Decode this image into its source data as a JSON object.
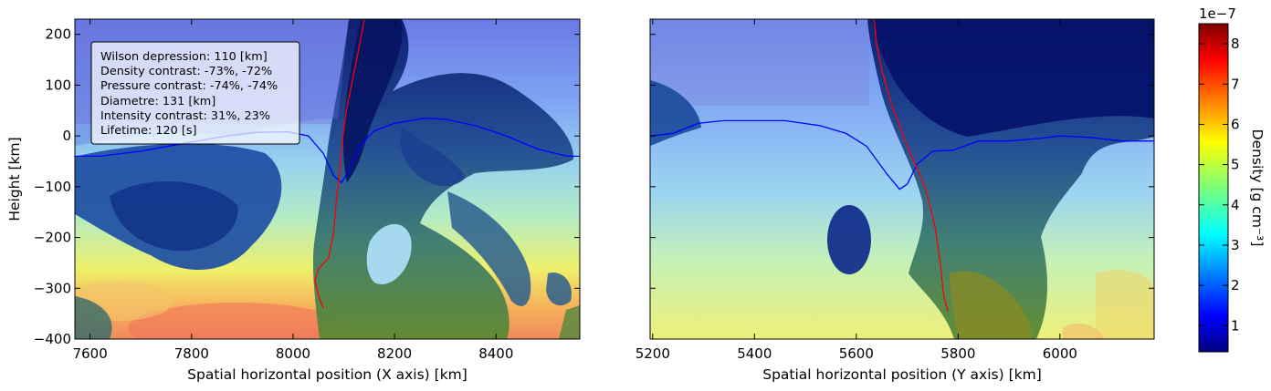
{
  "chart_data": [
    {
      "type": "heatmap",
      "panel": "left",
      "xlabel": "Spatial horizontal position (X axis) [km]",
      "ylabel": "Height [km]",
      "xlim": [
        7570,
        8565
      ],
      "ylim": [
        -400,
        230
      ],
      "xticks": [
        7600,
        7800,
        8000,
        8200,
        8400
      ],
      "yticks": [
        200,
        100,
        0,
        -100,
        -200,
        -300,
        -400
      ],
      "info_box": [
        "Wilson depression: 110 [km]",
        "Density contrast: -73%, -72%",
        "Pressure contrast: -74%, -74%",
        "Diametre: 131 [km]",
        "Intensity contrast: 31%, 23%",
        "Lifetime: 120 [s]"
      ],
      "series": [
        {
          "color": "#0000ff",
          "x": [
            7570,
            7620,
            7700,
            7800,
            7870,
            7930,
            7990,
            8030,
            8060,
            8080,
            8095,
            8110,
            8130,
            8160,
            8200,
            8260,
            8300,
            8360,
            8420,
            8480,
            8540,
            8565
          ],
          "y": [
            -40,
            -40,
            -30,
            -12,
            0,
            7,
            8,
            0,
            -35,
            -78,
            -92,
            -70,
            -20,
            10,
            25,
            35,
            33,
            20,
            0,
            -25,
            -40,
            -40
          ]
        },
        {
          "color": "#ff0000",
          "x": [
            8060,
            8050,
            8043,
            8050,
            8070,
            8080,
            8085,
            8092,
            8098,
            8105,
            8115,
            8125,
            8135,
            8140
          ],
          "y": [
            -340,
            -315,
            -285,
            -262,
            -240,
            -190,
            -130,
            -70,
            0,
            50,
            100,
            150,
            200,
            228
          ]
        }
      ]
    },
    {
      "type": "heatmap",
      "panel": "right",
      "xlabel": "Spatial horizontal position (Y axis) [km]",
      "ylabel": "",
      "xlim": [
        5195,
        6185
      ],
      "ylim": [
        -400,
        230
      ],
      "xticks": [
        5200,
        5400,
        5600,
        5800,
        6000
      ],
      "series": [
        {
          "color": "#0000ff",
          "x": [
            5195,
            5240,
            5290,
            5340,
            5400,
            5460,
            5530,
            5580,
            5620,
            5660,
            5685,
            5700,
            5720,
            5750,
            5790,
            5840,
            5900,
            5960,
            6000,
            6060,
            6120,
            6185
          ],
          "y": [
            0,
            5,
            25,
            30,
            30,
            30,
            20,
            5,
            -20,
            -75,
            -105,
            -95,
            -55,
            -30,
            -28,
            -10,
            -10,
            -5,
            0,
            -3,
            -10,
            -10
          ]
        },
        {
          "color": "#ff0000",
          "x": [
            5635,
            5640,
            5650,
            5670,
            5700,
            5735,
            5755,
            5765,
            5770,
            5773,
            5780
          ],
          "y": [
            228,
            180,
            130,
            60,
            -20,
            -100,
            -180,
            -250,
            -300,
            -320,
            -345
          ]
        }
      ]
    },
    {
      "type": "colorbar",
      "label": "Density [g cm⁻³]",
      "offset_text": "1e−7",
      "range": [
        0.35,
        8.5
      ],
      "ticks": [
        1,
        2,
        3,
        4,
        5,
        6,
        7,
        8
      ],
      "colormap": "jet"
    }
  ]
}
